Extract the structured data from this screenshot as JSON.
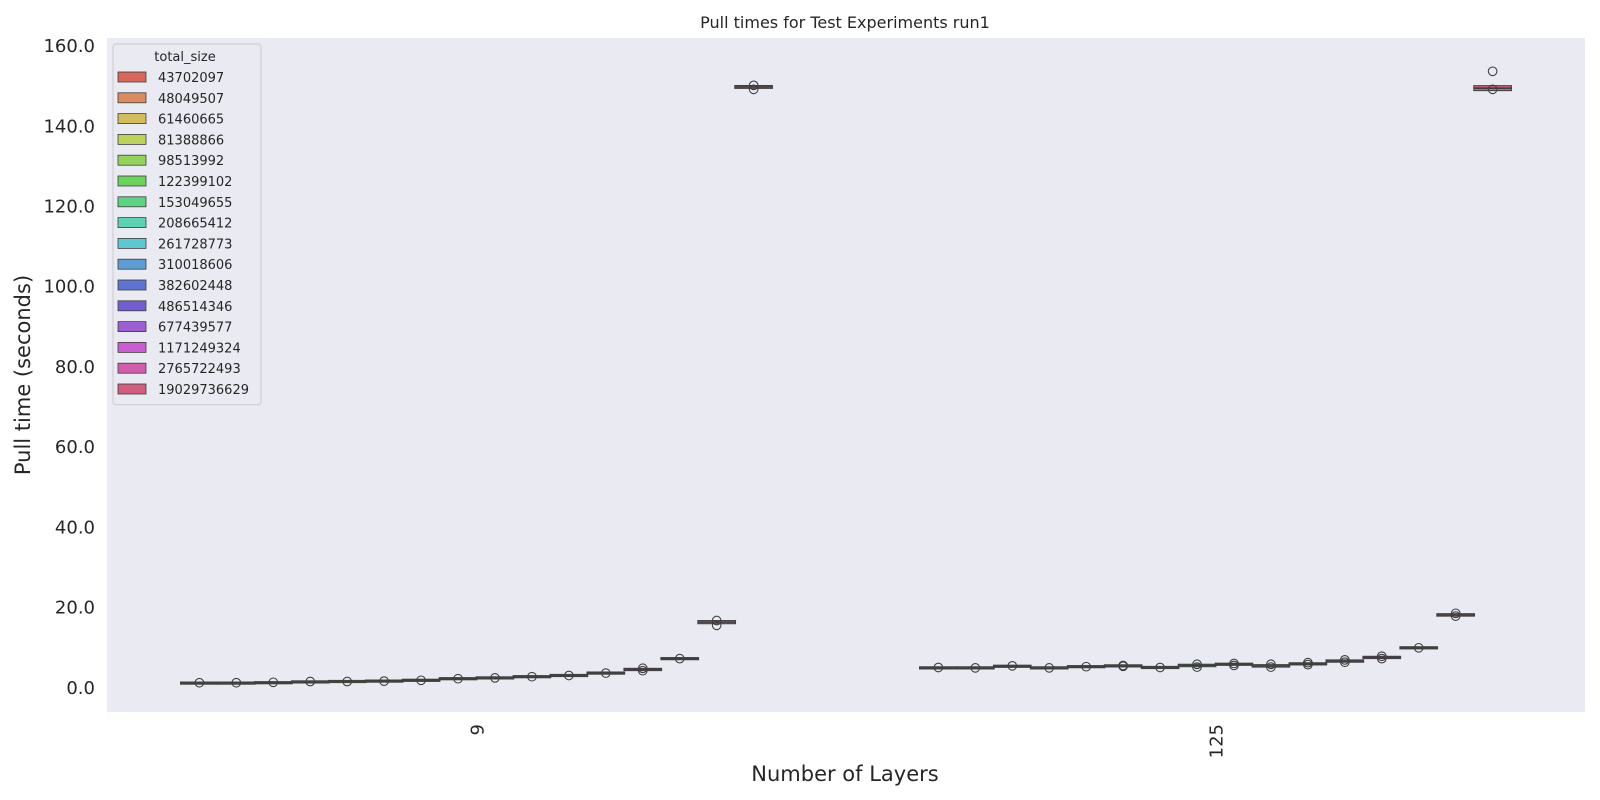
{
  "chart_data": {
    "type": "box",
    "title": "Pull times for Test Experiments run1",
    "xlabel": "Number of Layers",
    "ylabel": "Pull time (seconds)",
    "categories": [
      "9",
      "125"
    ],
    "ylim": [
      -6,
      162
    ],
    "yticks": [
      "0.0",
      "20.0",
      "40.0",
      "60.0",
      "80.0",
      "100.0",
      "120.0",
      "140.0",
      "160.0"
    ],
    "grid": false,
    "background": "#eaeaf2",
    "legend": {
      "title": "total_size",
      "placement": "top-left"
    },
    "series": [
      {
        "name": "43702097",
        "color": "#d9675e",
        "median": [
          1.2,
          5.0
        ],
        "outliers": [
          [
            1.3
          ],
          [
            5.1
          ]
        ]
      },
      {
        "name": "48049507",
        "color": "#d98c5e",
        "median": [
          1.2,
          5.0
        ],
        "outliers": [
          [
            1.3
          ],
          [
            5.0
          ]
        ]
      },
      {
        "name": "61460665",
        "color": "#d4bd5e",
        "median": [
          1.3,
          5.4
        ],
        "outliers": [
          [
            1.4
          ],
          [
            5.5
          ]
        ]
      },
      {
        "name": "81388866",
        "color": "#bcd15e",
        "median": [
          1.5,
          5.0
        ],
        "outliers": [
          [
            1.6
          ],
          [
            5.0
          ]
        ]
      },
      {
        "name": "98513992",
        "color": "#96d15e",
        "median": [
          1.6,
          5.3
        ],
        "outliers": [
          [
            1.6
          ],
          [
            5.3
          ]
        ]
      },
      {
        "name": "122399102",
        "color": "#6dd15e",
        "median": [
          1.7,
          5.5
        ],
        "outliers": [
          [
            1.7
          ],
          [
            5.4,
            5.6
          ]
        ]
      },
      {
        "name": "153049655",
        "color": "#5ed182",
        "median": [
          1.9,
          5.1
        ],
        "outliers": [
          [
            1.9
          ],
          [
            5.1
          ]
        ]
      },
      {
        "name": "208665412",
        "color": "#5ed1b5",
        "median": [
          2.3,
          5.6
        ],
        "outliers": [
          [
            2.3
          ],
          [
            5.2,
            5.9
          ]
        ]
      },
      {
        "name": "261728773",
        "color": "#5ec8d1",
        "median": [
          2.5,
          5.9
        ],
        "outliers": [
          [
            2.5
          ],
          [
            5.6,
            6.1
          ]
        ]
      },
      {
        "name": "310018606",
        "color": "#5e9dd1",
        "median": [
          2.8,
          5.5
        ],
        "outliers": [
          [
            2.8
          ],
          [
            5.2,
            5.9
          ]
        ]
      },
      {
        "name": "382602448",
        "color": "#5e74d1",
        "median": [
          3.1,
          6.0
        ],
        "outliers": [
          [
            3.1
          ],
          [
            5.8,
            6.3
          ]
        ]
      },
      {
        "name": "486514346",
        "color": "#725ed1",
        "median": [
          3.7,
          6.7
        ],
        "outliers": [
          [
            3.7
          ],
          [
            6.4,
            7.0
          ]
        ]
      },
      {
        "name": "677439577",
        "color": "#9d5ed1",
        "median": [
          4.6,
          7.6
        ],
        "outliers": [
          [
            4.3,
            4.9
          ],
          [
            7.3,
            7.9
          ]
        ]
      },
      {
        "name": "1171249324",
        "color": "#c95ed1",
        "median": [
          7.3,
          10.0
        ],
        "outliers": [
          [
            7.3
          ],
          [
            10.0
          ]
        ]
      },
      {
        "name": "2765722493",
        "color": "#d15eac",
        "median": [
          16.4,
          18.2
        ],
        "outliers": [
          [
            15.6,
            16.8
          ],
          [
            17.9,
            18.6
          ]
        ]
      },
      {
        "name": "19029736629",
        "color": "#d15e7f",
        "median": [
          149.8,
          149.5
        ],
        "outliers": [
          [
            149.2,
            150.2
          ],
          [
            149.2,
            153.7
          ]
        ]
      }
    ]
  }
}
